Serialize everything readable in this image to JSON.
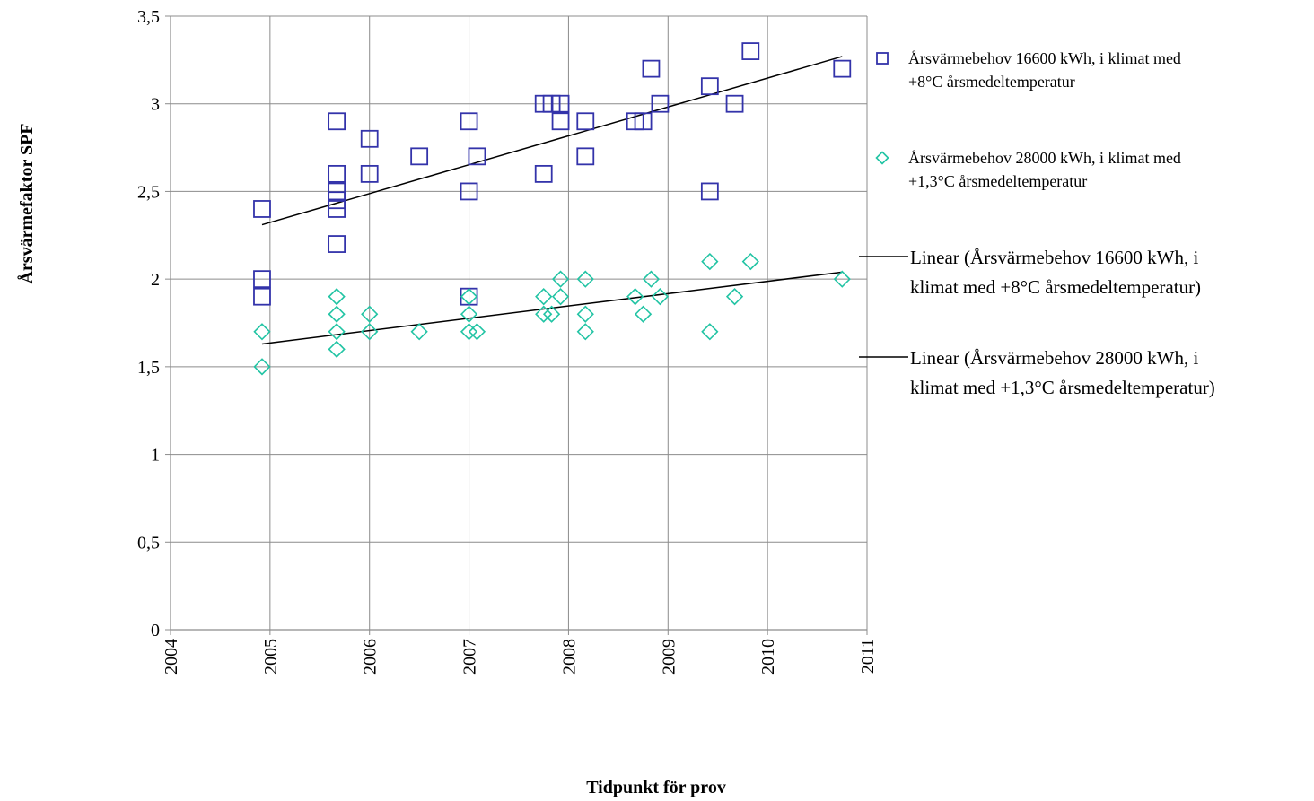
{
  "chart_data": {
    "type": "scatter",
    "xlabel": "Tidpunkt för prov",
    "ylabel": "Årsvärmefaktor SPF",
    "xlim": [
      2004,
      2011
    ],
    "ylim": [
      0,
      3.5
    ],
    "x_ticks": [
      2004,
      2005,
      2006,
      2007,
      2008,
      2009,
      2010,
      2011
    ],
    "y_ticks": [
      0,
      0.5,
      1,
      1.5,
      2,
      2.5,
      3,
      3.5
    ],
    "y_tick_labels": [
      "0",
      "0,5",
      "1",
      "1,5",
      "2",
      "2,5",
      "3",
      "3,5"
    ],
    "grid": true,
    "legend_position": "right",
    "series": [
      {
        "name": "Årsvärmebehov 16600 kWh, i klimat med +8°C årsmedeltemperatur",
        "marker": "square",
        "color": "#3333aa",
        "points": [
          [
            2004.92,
            2.4
          ],
          [
            2004.92,
            2.0
          ],
          [
            2004.92,
            1.9
          ],
          [
            2005.67,
            2.9
          ],
          [
            2005.67,
            2.6
          ],
          [
            2005.67,
            2.5
          ],
          [
            2005.67,
            2.45
          ],
          [
            2005.67,
            2.4
          ],
          [
            2005.67,
            2.2
          ],
          [
            2006.0,
            2.8
          ],
          [
            2006.0,
            2.6
          ],
          [
            2006.5,
            2.7
          ],
          [
            2007.0,
            2.9
          ],
          [
            2007.0,
            2.5
          ],
          [
            2007.0,
            1.9
          ],
          [
            2007.08,
            2.7
          ],
          [
            2007.75,
            3.0
          ],
          [
            2007.75,
            2.6
          ],
          [
            2007.83,
            3.0
          ],
          [
            2007.92,
            3.0
          ],
          [
            2007.92,
            2.9
          ],
          [
            2008.17,
            2.9
          ],
          [
            2008.17,
            2.7
          ],
          [
            2008.67,
            2.9
          ],
          [
            2008.75,
            2.9
          ],
          [
            2008.83,
            3.2
          ],
          [
            2008.92,
            3.0
          ],
          [
            2009.42,
            3.1
          ],
          [
            2009.42,
            2.5
          ],
          [
            2009.67,
            3.0
          ],
          [
            2009.83,
            3.3
          ],
          [
            2010.75,
            3.2
          ]
        ]
      },
      {
        "name": "Årsvärmebehov 28000 kWh, i klimat med +1,3°C årsmedeltemperatur",
        "marker": "diamond",
        "color": "#22c4a4",
        "points": [
          [
            2004.92,
            1.7
          ],
          [
            2004.92,
            1.5
          ],
          [
            2005.67,
            1.9
          ],
          [
            2005.67,
            1.8
          ],
          [
            2005.67,
            1.7
          ],
          [
            2005.67,
            1.6
          ],
          [
            2006.0,
            1.8
          ],
          [
            2006.0,
            1.7
          ],
          [
            2006.5,
            1.7
          ],
          [
            2007.0,
            1.9
          ],
          [
            2007.0,
            1.8
          ],
          [
            2007.0,
            1.7
          ],
          [
            2007.08,
            1.7
          ],
          [
            2007.75,
            1.9
          ],
          [
            2007.75,
            1.8
          ],
          [
            2007.83,
            1.8
          ],
          [
            2007.92,
            2.0
          ],
          [
            2007.92,
            1.9
          ],
          [
            2008.17,
            2.0
          ],
          [
            2008.17,
            1.8
          ],
          [
            2008.17,
            1.7
          ],
          [
            2008.67,
            1.9
          ],
          [
            2008.75,
            1.8
          ],
          [
            2008.83,
            2.0
          ],
          [
            2008.92,
            1.9
          ],
          [
            2009.42,
            2.1
          ],
          [
            2009.42,
            1.7
          ],
          [
            2009.67,
            1.9
          ],
          [
            2009.83,
            2.1
          ],
          [
            2010.75,
            2.0
          ]
        ]
      },
      {
        "name": "Linear (Årsvärmebehov 16600 kWh, i klimat med +8°C årsmedeltemperatur)",
        "type": "line",
        "color": "#000000",
        "points": [
          [
            2004.92,
            2.31
          ],
          [
            2010.75,
            3.27
          ]
        ]
      },
      {
        "name": "Linear (Årsvärmebehov 28000 kWh, i klimat med +1,3°C årsmedeltemperatur)",
        "type": "line",
        "color": "#000000",
        "points": [
          [
            2004.92,
            1.63
          ],
          [
            2010.75,
            2.04
          ]
        ]
      }
    ],
    "legend": {
      "entries": [
        {
          "lines": [
            "Årsvärmebehov 16600 kWh, i klimat med",
            "+8°C årsmedeltemperatur"
          ]
        },
        {
          "lines": [
            "Årsvärmebehov 28000 kWh, i klimat med",
            "+1,3°C årsmedeltemperatur"
          ]
        },
        {
          "lines": [
            "Linear (Årsvärmebehov 16600 kWh, i",
            "klimat med +8°C årsmedeltemperatur)"
          ]
        },
        {
          "lines": [
            "Linear (Årsvärmebehov 28000 kWh, i",
            "klimat med +1,3°C årsmedeltemperatur)"
          ]
        }
      ]
    }
  }
}
